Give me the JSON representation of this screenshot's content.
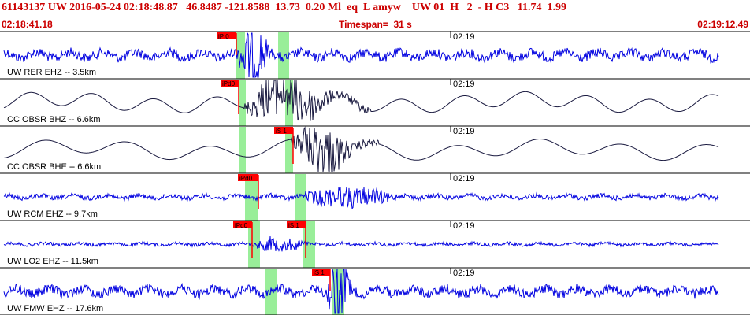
{
  "header": {
    "title": "61143137 UW 2016-05-24 02:18:48.87   46.8487 -121.8588  13.73  0.20 Ml  eq  L amyw    UW 01  H   2  - H C3   11.74  1.99",
    "start_time": "02:18:41.18",
    "timespan": "Timespan=  31 s",
    "end_time": "02:19:12.49"
  },
  "colors": {
    "header_red": "#cc0000",
    "trace_blue": "#0000e0",
    "trace_dark": "#1a1a40",
    "pick_green": "#99ee99",
    "pick_red": "#ff0000"
  },
  "panels": [
    {
      "label": "UW RER EHZ -- 3.5km",
      "tick": "02:19",
      "trace": "blue",
      "picks": [
        "iP 0"
      ],
      "green_bands": 2
    },
    {
      "label": "CC OBSR BHZ -- 6.6km",
      "tick": "02:19",
      "trace": "dark",
      "picks": [
        "iPd0"
      ],
      "green_bands": 2
    },
    {
      "label": "CC OBSR BHE -- 6.6km",
      "tick": "02:19",
      "trace": "dark",
      "picks": [
        "iS 1"
      ],
      "green_bands": 2
    },
    {
      "label": "UW RCM EHZ -- 9.7km",
      "tick": "02:19",
      "trace": "blue",
      "picks": [
        "iPd0"
      ],
      "green_bands": 2
    },
    {
      "label": "UW LO2 EHZ -- 11.5km",
      "tick": "02:19",
      "trace": "blue",
      "picks": [
        "iPd0",
        "iS 1"
      ],
      "green_bands": 2
    },
    {
      "label": "UW FMW EHZ -- 17.6km",
      "tick": "02:19",
      "trace": "blue",
      "picks": [
        "iS 1"
      ],
      "green_bands": 2
    }
  ]
}
